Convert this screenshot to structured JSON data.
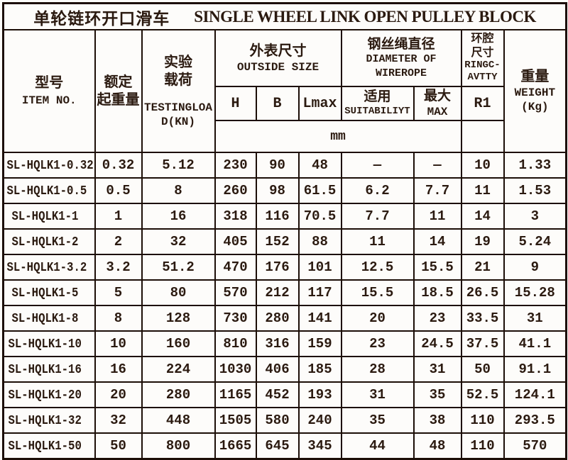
{
  "title": {
    "zh": "单轮链环开口滑车",
    "en": "SINGLE WHEEL LINK OPEN PULLEY BLOCK"
  },
  "header": {
    "item_no": {
      "zh": "型号",
      "en": "ITEM NO."
    },
    "rated_capacity": {
      "zh": "额定\n起重量"
    },
    "testing_load": {
      "zh": "实验\n载荷",
      "en": "TESTINGLOA\nD(KN)"
    },
    "outside_size": {
      "zh": "外表尺寸",
      "en": "OUTSIDE SIZE"
    },
    "wirerope_diameter": {
      "zh": "钢丝绳直径",
      "en": "DIAMETER OF\nWIREROPE"
    },
    "ring_cavity": {
      "zh": "环腔\n尺寸",
      "en": "RINGC-\nAVTTY"
    },
    "weight": {
      "zh": "重量",
      "en": "WEIGHT",
      "unit": "(Kg)"
    },
    "sub": {
      "h": "H",
      "b": "B",
      "lmax": "Lmax",
      "suitable_zh": "适用",
      "suitable_en": "SUITABILIYT",
      "max_zh": "最大",
      "max_en": "MAX",
      "r1": "R1"
    },
    "unit_row": "mm"
  },
  "columns_keys": [
    "item-no",
    "rated-capacity",
    "testing-load",
    "h",
    "b",
    "lmax",
    "suitable-diameter",
    "max-diameter",
    "r1",
    "weight"
  ],
  "rows": [
    [
      "SL-HQLK1-0.32",
      "0.32",
      "5.12",
      "230",
      "90",
      "48",
      "—",
      "—",
      "10",
      "1.33"
    ],
    [
      "SL-HQLK1-0.5",
      "0.5",
      "8",
      "260",
      "98",
      "61.5",
      "6.2",
      "7.7",
      "11",
      "1.53"
    ],
    [
      "SL-HQLK1-1",
      "1",
      "16",
      "318",
      "116",
      "70.5",
      "7.7",
      "11",
      "14",
      "3"
    ],
    [
      "SL-HQLK1-2",
      "2",
      "32",
      "405",
      "152",
      "88",
      "11",
      "14",
      "19",
      "5.24"
    ],
    [
      "SL-HQLK1-3.2",
      "3.2",
      "51.2",
      "470",
      "176",
      "101",
      "12.5",
      "15.5",
      "21",
      "9"
    ],
    [
      "SL-HQLK1-5",
      "5",
      "80",
      "570",
      "212",
      "117",
      "15.5",
      "18.5",
      "26.5",
      "15.28"
    ],
    [
      "SL-HQLK1-8",
      "8",
      "128",
      "730",
      "280",
      "141",
      "20",
      "23",
      "33.5",
      "31"
    ],
    [
      "SL-HQLK1-10",
      "10",
      "160",
      "810",
      "316",
      "159",
      "23",
      "24.5",
      "37.5",
      "41.1"
    ],
    [
      "SL-HQLK1-16",
      "16",
      "224",
      "1030",
      "406",
      "185",
      "28",
      "31",
      "50",
      "91.1"
    ],
    [
      "SL-HQLK1-20",
      "20",
      "280",
      "1165",
      "452",
      "193",
      "31",
      "35",
      "52.5",
      "124.1"
    ],
    [
      "SL-HQLK1-32",
      "32",
      "448",
      "1505",
      "580",
      "240",
      "35",
      "38",
      "110",
      "293.5"
    ],
    [
      "SL-HQLK1-50",
      "50",
      "800",
      "1665",
      "645",
      "345",
      "44",
      "48",
      "110",
      "570"
    ]
  ],
  "colors": {
    "border": "#1c0e07",
    "text": "#2b1a10",
    "background": "#fdfcfa"
  }
}
